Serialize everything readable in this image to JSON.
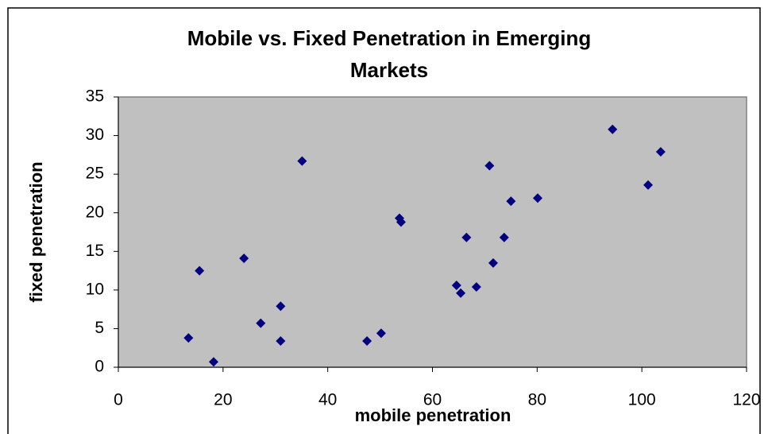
{
  "chart_data": {
    "type": "scatter",
    "title": "Mobile vs. Fixed Penetration in Emerging Markets",
    "x_label": "mobile penetration",
    "y_label": "fixed penetration",
    "color": "#000080",
    "plot_background": "#c0c0c0",
    "x": [
      13.4,
      15.5,
      18.2,
      24.0,
      27.2,
      31.0,
      31.0,
      35.1,
      47.5,
      50.2,
      53.7,
      54.0,
      64.6,
      65.4,
      66.5,
      68.4,
      70.9,
      71.6,
      73.7,
      75.0,
      80.1,
      94.4,
      101.2,
      103.6
    ],
    "values": [
      3.8,
      12.5,
      0.7,
      14.1,
      5.7,
      7.9,
      3.4,
      26.7,
      3.4,
      4.4,
      19.3,
      18.8,
      10.6,
      9.6,
      16.8,
      10.4,
      26.1,
      13.5,
      16.8,
      21.5,
      21.9,
      30.8,
      23.6,
      27.9
    ],
    "xlim": [
      0,
      120
    ],
    "xticks": [
      0,
      20,
      40,
      60,
      80,
      100,
      120
    ],
    "ylim": [
      0,
      35
    ],
    "yticks": [
      0,
      5,
      10,
      15,
      20,
      25,
      30,
      35
    ]
  }
}
